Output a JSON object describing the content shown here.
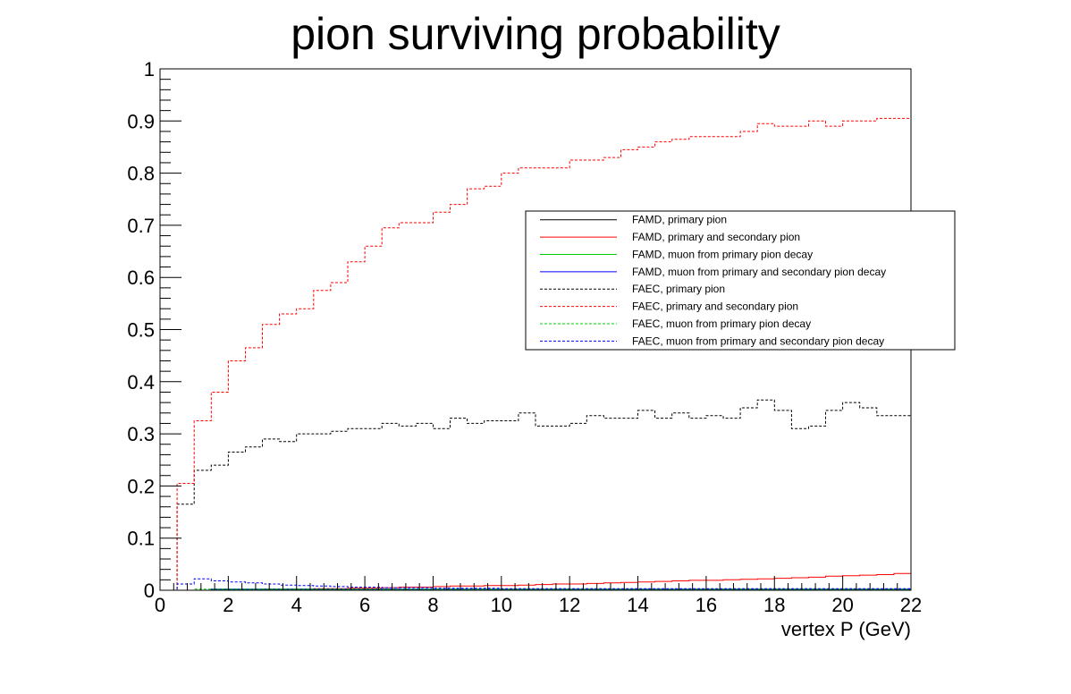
{
  "chart_data": {
    "type": "line",
    "title": "pion surviving probability",
    "xlabel": "vertex P (GeV)",
    "ylabel": "",
    "xlim": [
      0,
      22
    ],
    "ylim": [
      0,
      1
    ],
    "x_ticks": [
      0,
      2,
      4,
      6,
      8,
      10,
      12,
      14,
      16,
      18,
      20,
      22
    ],
    "x_tick_labels": [
      "0",
      "2",
      "4",
      "6",
      "8",
      "10",
      "12",
      "14",
      "16",
      "18",
      "20",
      "22"
    ],
    "y_ticks": [
      0,
      0.1,
      0.2,
      0.3,
      0.4,
      0.5,
      0.6,
      0.7,
      0.8,
      0.9,
      1
    ],
    "y_tick_labels": [
      "0",
      "0.1",
      "0.2",
      "0.3",
      "0.4",
      "0.5",
      "0.6",
      "0.7",
      "0.8",
      "0.9",
      "1"
    ],
    "grid": false,
    "legend_position": "center-right",
    "bin_edges_start": 0,
    "bin_width": 0.5,
    "series": [
      {
        "name": "FAMD, primary pion",
        "color": "#000000",
        "style": "solid",
        "values": [
          0,
          0,
          0,
          0,
          0,
          0,
          0,
          0,
          0,
          0,
          0,
          0,
          0,
          0,
          0,
          0,
          0,
          0,
          0,
          0,
          0,
          0,
          0,
          0,
          0,
          0,
          0,
          0,
          0,
          0,
          0,
          0,
          0,
          0,
          0,
          0,
          0,
          0,
          0,
          0,
          0,
          0,
          0,
          0
        ]
      },
      {
        "name": "FAMD, primary and secondary pion",
        "color": "#ff0000",
        "style": "solid",
        "values": [
          0,
          0,
          0,
          0.001,
          0.001,
          0.001,
          0.002,
          0.002,
          0.002,
          0.003,
          0.003,
          0.004,
          0.004,
          0.005,
          0.006,
          0.006,
          0.007,
          0.008,
          0.008,
          0.009,
          0.009,
          0.01,
          0.011,
          0.012,
          0.012,
          0.013,
          0.014,
          0.015,
          0.016,
          0.017,
          0.018,
          0.019,
          0.019,
          0.02,
          0.021,
          0.022,
          0.023,
          0.024,
          0.025,
          0.027,
          0.028,
          0.029,
          0.03,
          0.032
        ]
      },
      {
        "name": "FAMD, muon from primary pion decay",
        "color": "#00cc00",
        "style": "solid",
        "values": [
          0,
          0,
          0,
          0.001,
          0.001,
          0.001,
          0.001,
          0.001,
          0.001,
          0.001,
          0.001,
          0.001,
          0.001,
          0.001,
          0.001,
          0.001,
          0.001,
          0.001,
          0.001,
          0.001,
          0.001,
          0.001,
          0.001,
          0.001,
          0.001,
          0.001,
          0.001,
          0.001,
          0.001,
          0.001,
          0.001,
          0.001,
          0.001,
          0.001,
          0.001,
          0.001,
          0.001,
          0.001,
          0.001,
          0.001,
          0.001,
          0.001,
          0.001,
          0.001
        ]
      },
      {
        "name": "FAMD, muon from primary and secondary pion decay",
        "color": "#0000ff",
        "style": "solid",
        "values": [
          0,
          0,
          0,
          0.002,
          0.002,
          0.002,
          0.002,
          0.002,
          0.002,
          0.002,
          0.002,
          0.002,
          0.002,
          0.002,
          0.002,
          0.002,
          0.002,
          0.002,
          0.002,
          0.002,
          0.002,
          0.002,
          0.002,
          0.002,
          0.002,
          0.002,
          0.002,
          0.002,
          0.002,
          0.002,
          0.002,
          0.002,
          0.002,
          0.002,
          0.002,
          0.002,
          0.002,
          0.002,
          0.002,
          0.002,
          0.002,
          0.002,
          0.002,
          0.002
        ]
      },
      {
        "name": "FAEC, primary pion",
        "color": "#000000",
        "style": "dashed",
        "values": [
          0,
          0.165,
          0.23,
          0.24,
          0.265,
          0.275,
          0.29,
          0.285,
          0.3,
          0.3,
          0.305,
          0.31,
          0.31,
          0.32,
          0.315,
          0.32,
          0.31,
          0.33,
          0.32,
          0.325,
          0.325,
          0.34,
          0.315,
          0.315,
          0.32,
          0.335,
          0.33,
          0.33,
          0.345,
          0.33,
          0.34,
          0.33,
          0.335,
          0.33,
          0.35,
          0.365,
          0.345,
          0.31,
          0.315,
          0.345,
          0.36,
          0.35,
          0.335,
          0.335
        ]
      },
      {
        "name": "FAEC, primary and secondary pion",
        "color": "#ff0000",
        "style": "dashed",
        "values": [
          0,
          0.205,
          0.325,
          0.38,
          0.44,
          0.465,
          0.51,
          0.53,
          0.54,
          0.575,
          0.59,
          0.63,
          0.66,
          0.695,
          0.705,
          0.705,
          0.725,
          0.74,
          0.77,
          0.775,
          0.8,
          0.81,
          0.81,
          0.81,
          0.825,
          0.825,
          0.83,
          0.845,
          0.85,
          0.86,
          0.865,
          0.87,
          0.87,
          0.87,
          0.88,
          0.895,
          0.89,
          0.89,
          0.9,
          0.89,
          0.9,
          0.9,
          0.905,
          0.905
        ]
      },
      {
        "name": "FAEC, muon from primary pion decay",
        "color": "#00cc00",
        "style": "dashed",
        "values": [
          0,
          0,
          0.002,
          0.002,
          0.002,
          0.002,
          0.002,
          0.002,
          0.002,
          0.002,
          0.002,
          0.002,
          0.002,
          0.002,
          0.002,
          0.002,
          0.002,
          0.002,
          0.002,
          0.002,
          0.002,
          0.002,
          0.002,
          0.002,
          0.002,
          0.002,
          0.002,
          0.002,
          0.002,
          0.002,
          0.002,
          0.002,
          0.002,
          0.002,
          0.002,
          0.002,
          0.002,
          0.002,
          0.002,
          0.002,
          0.002,
          0.002,
          0.002,
          0.002
        ]
      },
      {
        "name": "FAEC, muon from primary and secondary pion decay",
        "color": "#0000ff",
        "style": "dashed",
        "values": [
          0,
          0.012,
          0.022,
          0.018,
          0.016,
          0.014,
          0.012,
          0.01,
          0.009,
          0.008,
          0.007,
          0.006,
          0.006,
          0.005,
          0.005,
          0.005,
          0.004,
          0.004,
          0.004,
          0.004,
          0.003,
          0.003,
          0.003,
          0.003,
          0.003,
          0.003,
          0.003,
          0.003,
          0.003,
          0.003,
          0.003,
          0.003,
          0.003,
          0.003,
          0.003,
          0.003,
          0.003,
          0.003,
          0.003,
          0.003,
          0.003,
          0.003,
          0.003,
          0.003
        ]
      }
    ]
  }
}
